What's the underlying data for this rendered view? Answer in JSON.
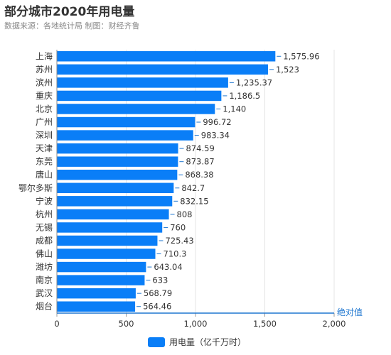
{
  "colors": {
    "bar": "#0a7ef7",
    "axis": "#1f77d0",
    "grid": "#e4e4e4",
    "text": "#333333"
  },
  "chart_data": {
    "type": "bar",
    "orientation": "horizontal",
    "title": "部分城市2020年用电量",
    "subtitle": "数据来源：各地统计局 制图：财经齐鲁",
    "xlabel": "绝对值",
    "ylabel": "",
    "xlim": [
      0,
      2000
    ],
    "xticks": [
      0,
      500,
      1000,
      1500,
      2000
    ],
    "xtick_labels": [
      "0",
      "500",
      "1,000",
      "1,500",
      "2,000"
    ],
    "grid": true,
    "legend_position": "bottom",
    "categories": [
      "上海",
      "苏州",
      "滨州",
      "重庆",
      "北京",
      "广州",
      "深圳",
      "天津",
      "东莞",
      "唐山",
      "鄂尔多斯",
      "宁波",
      "杭州",
      "无锡",
      "成都",
      "佛山",
      "潍坊",
      "南京",
      "武汉",
      "烟台"
    ],
    "series": [
      {
        "name": "用电量（亿千万时）",
        "values": [
          1575.96,
          1523,
          1235.37,
          1186.5,
          1140,
          996.72,
          983.34,
          874.59,
          873.87,
          868.38,
          842.7,
          832.15,
          808,
          760,
          725.43,
          710.3,
          643.04,
          633,
          568.79,
          564.46
        ],
        "labels": [
          "1,575.96",
          "1,523",
          "1,235.37",
          "1,186.5",
          "1,140",
          "996.72",
          "983.34",
          "874.59",
          "873.87",
          "868.38",
          "842.7",
          "832.15",
          "808",
          "760",
          "725.43",
          "710.3",
          "643.04",
          "633",
          "568.79",
          "564.46"
        ]
      }
    ]
  }
}
